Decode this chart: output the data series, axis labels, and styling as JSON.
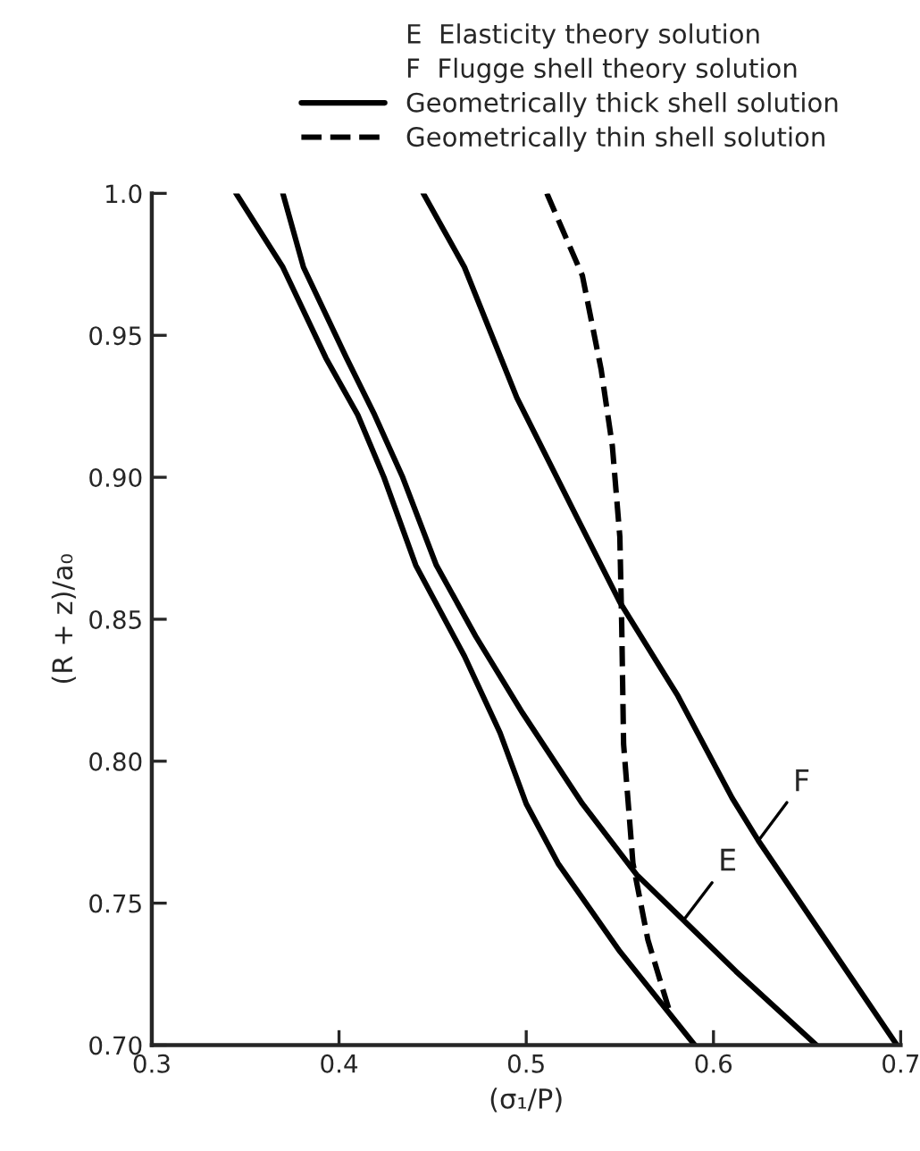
{
  "chart_data": {
    "type": "line",
    "xlabel": "(σ₁/P)",
    "ylabel": "(R + z)/a₀",
    "xlim": [
      0.3,
      0.7
    ],
    "xticks": [
      0.3,
      0.4,
      0.5,
      0.6,
      0.7
    ],
    "ylim": [
      0.7,
      1.0
    ],
    "yticks": [
      {
        "value": 0.7,
        "label": "0.70"
      },
      0.75,
      {
        "value": 0.8,
        "label": "0.80"
      },
      0.85,
      {
        "value": 0.9,
        "label": "0.90"
      },
      0.95,
      {
        "value": 1.0,
        "label": "1.0"
      }
    ],
    "grid": false,
    "legend": "top",
    "marker": "none",
    "annotations": [
      "E  Elasticity theory solution",
      "F  Flugge shell theory solution",
      {
        "text": "E",
        "x": 0.584,
        "y": 0.744
      },
      {
        "text": "F",
        "x": 0.624,
        "y": 0.772
      }
    ],
    "series": [
      {
        "name": "Geometrically thick shell solution",
        "color": "#000000",
        "line_style": "solid",
        "x": [
          0.345,
          0.37,
          0.393,
          0.41,
          0.424,
          0.441,
          0.467,
          0.486,
          0.5,
          0.517,
          0.55,
          0.59
        ],
        "values": [
          1.0,
          0.974,
          0.942,
          0.922,
          0.9,
          0.869,
          0.837,
          0.81,
          0.785,
          0.764,
          0.733,
          0.7
        ]
      },
      {
        "color": "#000000",
        "line_style": "solid",
        "x": [
          0.37,
          0.381,
          0.404,
          0.419,
          0.434,
          0.452,
          0.473,
          0.498,
          0.53,
          0.559,
          0.584,
          0.612,
          0.655
        ],
        "values": [
          1.0,
          0.974,
          0.942,
          0.922,
          0.9,
          0.869,
          0.844,
          0.817,
          0.785,
          0.76,
          0.744,
          0.726,
          0.7
        ]
      },
      {
        "color": "#000000",
        "line_style": "solid",
        "x": [
          0.445,
          0.467,
          0.495,
          0.527,
          0.55,
          0.581,
          0.61,
          0.624,
          0.66,
          0.698
        ],
        "values": [
          1.0,
          0.974,
          0.928,
          0.886,
          0.856,
          0.823,
          0.787,
          0.772,
          0.737,
          0.7
        ]
      },
      {
        "name": "Geometrically thin shell solution",
        "color": "#000000",
        "line_style": "dashed",
        "x": [
          0.511,
          0.53,
          0.54,
          0.546,
          0.55,
          0.551,
          0.552,
          0.557,
          0.565,
          0.576
        ],
        "values": [
          1.0,
          0.971,
          0.938,
          0.911,
          0.879,
          0.848,
          0.806,
          0.764,
          0.737,
          0.713
        ]
      }
    ]
  }
}
